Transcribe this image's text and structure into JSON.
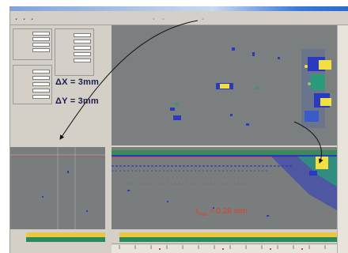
{
  "annotations": {
    "delta_x": "ΔX = 3mm",
    "delta_y": "ΔY = 3mm",
    "depth_prefix": "t",
    "depth_subscript": "max",
    "depth_value": "= 0.26 mm"
  },
  "colors": {
    "panel_gray": "#7c7f80",
    "window_gray": "#d4d0c8",
    "indication_yellow": "#f2e040",
    "indication_blue": "#2a3ac0",
    "indication_green": "#2a9a7a",
    "depth_label_red": "#e04020",
    "annotation_navy": "#1c1c50"
  },
  "icons": {
    "toolbar": [
      "open-icon",
      "save-icon",
      "print-icon",
      "zoom-icon",
      "cursor-icon",
      "settings-icon"
    ]
  }
}
